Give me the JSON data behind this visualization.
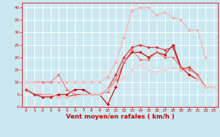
{
  "title": "",
  "xlabel": "Vent moyen/en rafales ( km/h )",
  "ylabel": "",
  "xlim": [
    -0.5,
    23.5
  ],
  "ylim": [
    0,
    42
  ],
  "bg_color": "#cbe8f0",
  "grid_color": "#ffffff",
  "series": [
    {
      "x": [
        0,
        1,
        2,
        3,
        4,
        5,
        6,
        7,
        8,
        9,
        10,
        11,
        12,
        13,
        14,
        15,
        16,
        17,
        18,
        19,
        20,
        21
      ],
      "y": [
        7,
        5,
        4,
        4,
        5,
        5,
        7,
        7,
        5,
        5,
        1,
        8,
        18,
        22,
        22,
        20,
        22,
        21,
        25,
        16,
        13,
        11
      ],
      "color": "#cc0000",
      "lw": 0.9,
      "ms": 2.0
    },
    {
      "x": [
        0,
        1,
        2,
        3,
        4,
        5,
        6,
        7,
        8,
        9,
        10,
        11,
        12,
        13,
        14,
        15,
        16,
        17,
        18,
        19,
        20,
        21,
        22
      ],
      "y": [
        7,
        5,
        5,
        5,
        4,
        4,
        5,
        5,
        5,
        5,
        7,
        13,
        20,
        24,
        25,
        24,
        24,
        23,
        24,
        15,
        16,
        13,
        8
      ],
      "color": "#dd3333",
      "lw": 0.9,
      "ms": 2.0
    },
    {
      "x": [
        0,
        1,
        2,
        3,
        4,
        5,
        6,
        7,
        8,
        9,
        10,
        11,
        12,
        13,
        14,
        15,
        16,
        17,
        18,
        19,
        20,
        21,
        22
      ],
      "y": [
        10,
        10,
        10,
        10,
        10,
        10,
        10,
        10,
        10,
        10,
        12,
        18,
        28,
        39,
        40,
        40,
        37,
        38,
        36,
        35,
        31,
        31,
        20
      ],
      "color": "#ffaaaa",
      "lw": 0.8,
      "ms": 2.0
    },
    {
      "x": [
        0,
        1,
        2,
        3,
        4,
        5,
        6,
        7,
        8,
        9,
        10,
        11,
        12,
        13,
        14,
        15,
        16,
        17,
        18,
        19,
        20,
        21,
        22,
        23
      ],
      "y": [
        10,
        10,
        10,
        10,
        13,
        7,
        5,
        5,
        5,
        5,
        6,
        11,
        18,
        23,
        19,
        19,
        22,
        20,
        20,
        16,
        15,
        13,
        8,
        8
      ],
      "color": "#ee7777",
      "lw": 0.8,
      "ms": 2.0
    },
    {
      "x": [
        0,
        1,
        2,
        3,
        4,
        5,
        6,
        7,
        8,
        9,
        10,
        11,
        12,
        13,
        14,
        15,
        16,
        17,
        18,
        19,
        20,
        21,
        22,
        23
      ],
      "y": [
        10,
        10,
        5,
        5,
        4,
        4,
        4,
        5,
        5,
        5,
        7,
        9,
        12,
        15,
        17,
        15,
        14,
        15,
        16,
        15,
        12,
        11,
        8,
        8
      ],
      "color": "#ffcccc",
      "lw": 0.8,
      "ms": 2.0
    }
  ],
  "xticks": [
    0,
    1,
    2,
    3,
    4,
    5,
    6,
    7,
    8,
    9,
    10,
    11,
    12,
    13,
    14,
    15,
    16,
    17,
    18,
    19,
    20,
    21,
    22,
    23
  ],
  "yticks": [
    0,
    5,
    10,
    15,
    20,
    25,
    30,
    35,
    40
  ],
  "tick_fontsize": 4.5,
  "label_fontsize": 6.5,
  "label_color": "#cc0000",
  "tick_color": "#cc0000"
}
